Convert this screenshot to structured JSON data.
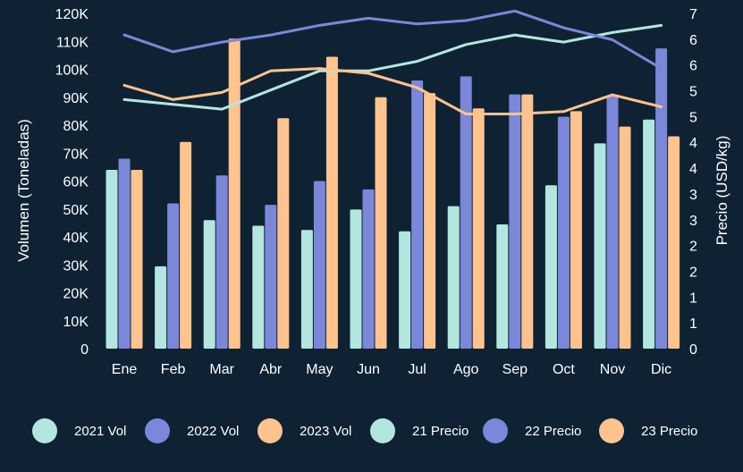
{
  "chart_data": {
    "type": "bar",
    "title": "",
    "xlabel": "",
    "ylabel": "Volumen (Toneladas)",
    "y2label": "Precio (USD/kg)",
    "ylim": [
      0,
      120000
    ],
    "y2lim": [
      0,
      7
    ],
    "grid": false,
    "legend_position": "bottom",
    "categories": [
      "Ene",
      "Feb",
      "Mar",
      "Abr",
      "May",
      "Jun",
      "Jul",
      "Ago",
      "Sep",
      "Oct",
      "Nov",
      "Dic"
    ],
    "y_ticks": [
      "0",
      "10K",
      "20K",
      "30K",
      "40K",
      "50K",
      "60K",
      "70K",
      "80K",
      "90K",
      "100K",
      "110K",
      "120K"
    ],
    "y2_ticks": [
      "0",
      "1",
      "1",
      "2",
      "2",
      "3",
      "3",
      "4",
      "4",
      "5",
      "5",
      "6",
      "6",
      "7"
    ],
    "series": [
      {
        "name": "2021 Vol",
        "kind": "bar",
        "axis": "left",
        "color": "#b3e6de",
        "values": [
          64000,
          29500,
          46000,
          44000,
          42500,
          49800,
          42000,
          51000,
          44500,
          58500,
          73500,
          82000
        ]
      },
      {
        "name": "2022 Vol",
        "kind": "bar",
        "axis": "left",
        "color": "#7b87d8",
        "values": [
          68000,
          52000,
          62000,
          51500,
          60000,
          57000,
          96000,
          97500,
          91000,
          83000,
          90500,
          107500
        ]
      },
      {
        "name": "2023 Vol",
        "kind": "bar",
        "axis": "left",
        "color": "#ffc38e",
        "values": [
          64000,
          74000,
          111000,
          82500,
          104500,
          90000,
          91500,
          86000,
          91000,
          85000,
          79500,
          76000
        ]
      },
      {
        "name": "21 Precio",
        "kind": "line",
        "axis": "right",
        "color": "#b3e6de",
        "values": [
          5.2,
          5.1,
          5.0,
          5.4,
          5.8,
          5.8,
          6.0,
          6.35,
          6.55,
          6.4,
          6.6,
          6.75
        ]
      },
      {
        "name": "22 Precio",
        "kind": "line",
        "axis": "right",
        "color": "#7b87d8",
        "values": [
          6.55,
          6.2,
          6.4,
          6.55,
          6.75,
          6.9,
          6.78,
          6.85,
          7.05,
          6.7,
          6.45,
          5.85
        ]
      },
      {
        "name": "23 Precio",
        "kind": "line",
        "axis": "right",
        "color": "#ffc38e",
        "values": [
          5.5,
          5.2,
          5.35,
          5.8,
          5.85,
          5.75,
          5.45,
          4.9,
          4.9,
          4.95,
          5.3,
          5.05
        ]
      }
    ]
  }
}
